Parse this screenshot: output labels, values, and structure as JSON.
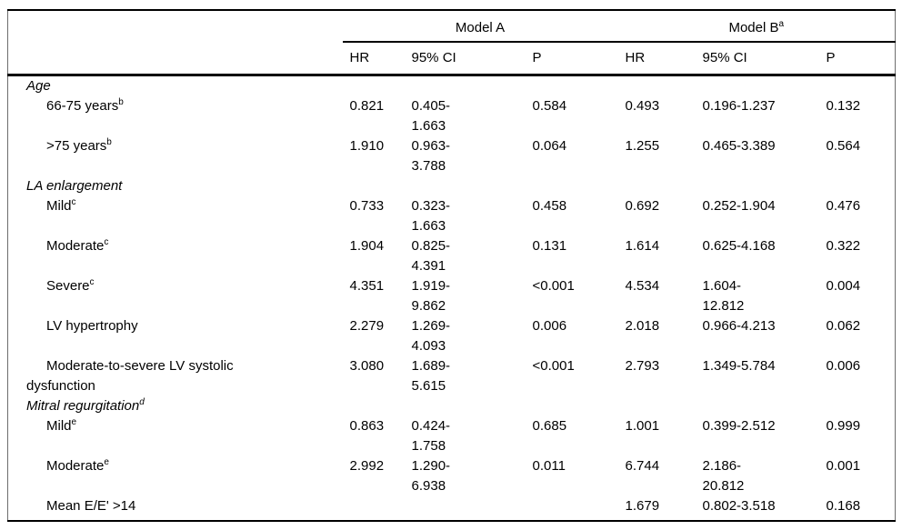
{
  "page": {
    "background": "#ffffff",
    "text_color": "#000000",
    "rule_color": "#000000"
  },
  "table": {
    "header": {
      "models": [
        {
          "label": "Model A",
          "sup": ""
        },
        {
          "label": "Model B",
          "sup": "a"
        }
      ],
      "columns": [
        "HR",
        "95% CI",
        "P",
        "HR",
        "95% CI",
        "P"
      ]
    },
    "rows": [
      {
        "type": "section",
        "label": "Age",
        "sup": ""
      },
      {
        "type": "item",
        "label": "66-75 years",
        "sup": "b",
        "a_hr": "0.821",
        "a_ci": "0.405-\n1.663",
        "a_p": "0.584",
        "b_hr": "0.493",
        "b_ci": "0.196-1.237",
        "b_p": "0.132"
      },
      {
        "type": "item",
        "label": ">75 years",
        "sup": "b",
        "a_hr": "1.910",
        "a_ci": "0.963-\n3.788",
        "a_p": "0.064",
        "b_hr": "1.255",
        "b_ci": "0.465-3.389",
        "b_p": "0.564"
      },
      {
        "type": "section",
        "label": "LA enlargement",
        "sup": ""
      },
      {
        "type": "item",
        "label": "Mild",
        "sup": "c",
        "a_hr": "0.733",
        "a_ci": "0.323-\n1.663",
        "a_p": "0.458",
        "b_hr": "0.692",
        "b_ci": "0.252-1.904",
        "b_p": "0.476"
      },
      {
        "type": "item",
        "label": "Moderate",
        "sup": "c",
        "a_hr": "1.904",
        "a_ci": "0.825-\n4.391",
        "a_p": "0.131",
        "b_hr": "1.614",
        "b_ci": "0.625-4.168",
        "b_p": "0.322"
      },
      {
        "type": "item",
        "label": "Severe",
        "sup": "c",
        "a_hr": "4.351",
        "a_ci": "1.919-\n9.862",
        "a_p": "<0.001",
        "b_hr": "4.534",
        "b_ci": "1.604-\n12.812",
        "b_p": "0.004"
      },
      {
        "type": "item",
        "label": "LV hypertrophy",
        "sup": "",
        "a_hr": "2.279",
        "a_ci": "1.269-\n4.093",
        "a_p": "0.006",
        "b_hr": "2.018",
        "b_ci": "0.966-4.213",
        "b_p": "0.062"
      },
      {
        "type": "item",
        "label": "Moderate-to-severe LV systolic\ndysfunction",
        "sup": "",
        "a_hr": "3.080",
        "a_ci": "1.689-\n5.615",
        "a_p": "<0.001",
        "b_hr": "2.793",
        "b_ci": "1.349-5.784",
        "b_p": "0.006"
      },
      {
        "type": "section",
        "label": "Mitral regurgitation",
        "sup": "d"
      },
      {
        "type": "item",
        "label": "Mild",
        "sup": "e",
        "a_hr": "0.863",
        "a_ci": "0.424-\n1.758",
        "a_p": "0.685",
        "b_hr": "1.001",
        "b_ci": "0.399-2.512",
        "b_p": "0.999"
      },
      {
        "type": "item",
        "label": "Moderate",
        "sup": "e",
        "a_hr": "2.992",
        "a_ci": "1.290-\n6.938",
        "a_p": "0.011",
        "b_hr": "6.744",
        "b_ci": "2.186-\n20.812",
        "b_p": "0.001"
      },
      {
        "type": "item",
        "label": "Mean E/E' >14",
        "sup": "",
        "a_hr": "",
        "a_ci": "",
        "a_p": "",
        "b_hr": "1.679",
        "b_ci": "0.802-3.518",
        "b_p": "0.168"
      }
    ]
  }
}
